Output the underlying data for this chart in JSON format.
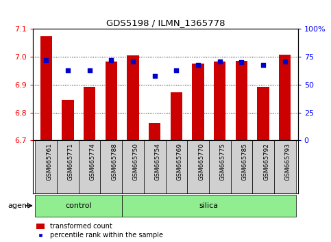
{
  "title": "GDS5198 / ILMN_1365778",
  "samples": [
    "GSM665761",
    "GSM665771",
    "GSM665774",
    "GSM665788",
    "GSM665750",
    "GSM665754",
    "GSM665769",
    "GSM665770",
    "GSM665775",
    "GSM665785",
    "GSM665792",
    "GSM665793"
  ],
  "transformed_count": [
    7.075,
    6.845,
    6.893,
    6.983,
    7.005,
    6.762,
    6.872,
    6.975,
    6.983,
    6.985,
    6.893,
    7.007
  ],
  "percentile_rank": [
    72,
    63,
    63,
    72,
    71,
    58,
    63,
    68,
    71,
    70,
    68,
    71
  ],
  "control_indices": [
    0,
    1,
    2,
    3
  ],
  "silica_indices": [
    4,
    5,
    6,
    7,
    8,
    9,
    10,
    11
  ],
  "ylim_left": [
    6.7,
    7.1
  ],
  "ylim_right": [
    0,
    100
  ],
  "yticks_left": [
    6.7,
    6.8,
    6.9,
    7.0,
    7.1
  ],
  "yticks_right": [
    0,
    25,
    50,
    75,
    100
  ],
  "bar_color": "#cc0000",
  "dot_color": "#0000cc",
  "bar_bottom": 6.7,
  "control_color": "#90ee90",
  "silica_color": "#90ee90",
  "agent_label": "agent",
  "control_label": "control",
  "silica_label": "silica",
  "legend_bar_label": "transformed count",
  "legend_dot_label": "percentile rank within the sample",
  "tick_bg_color": "#d0d0d0",
  "bar_width": 0.55
}
